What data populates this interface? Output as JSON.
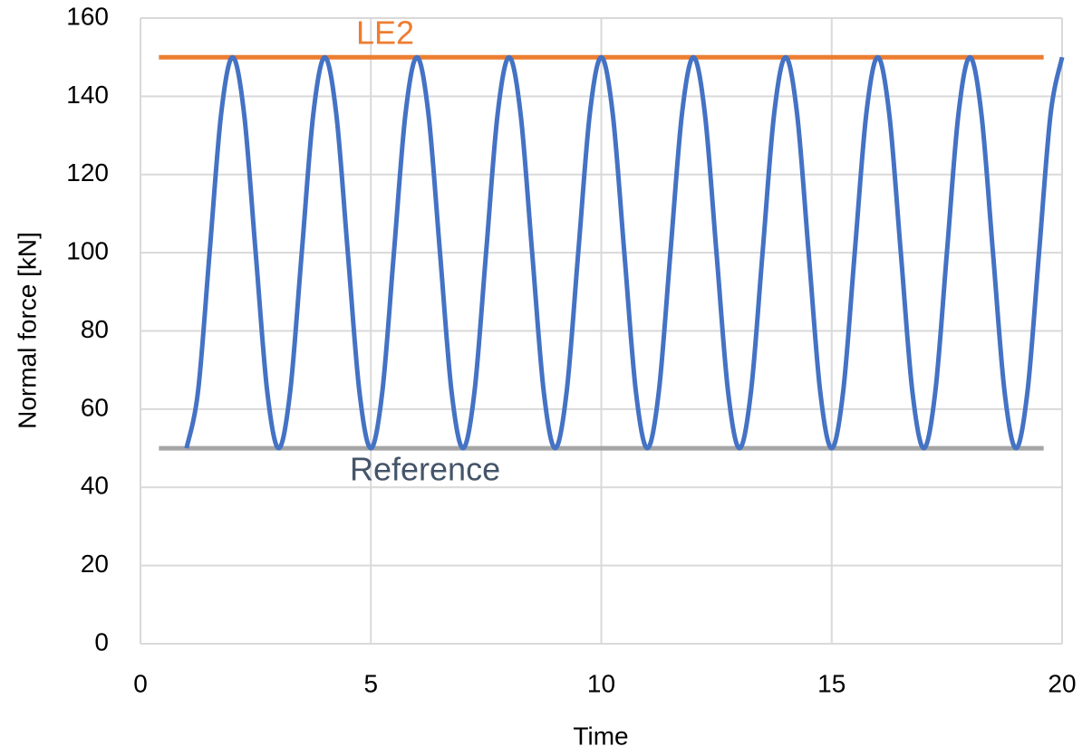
{
  "chart_data": {
    "type": "line",
    "x_label": "Time",
    "y_label": "Normal force [kN]",
    "xlim": [
      0,
      20
    ],
    "xticks": [
      0,
      5,
      10,
      15,
      20
    ],
    "ylim": [
      0,
      160
    ],
    "yticks": [
      0,
      20,
      40,
      60,
      80,
      100,
      120,
      140,
      160
    ],
    "grid": true,
    "series": [
      {
        "color": "#4472c4",
        "x": [
          1,
          1.25,
          1.5,
          1.75,
          2,
          2.25,
          2.5,
          2.75,
          3,
          3.25,
          3.5,
          3.75,
          4,
          4.25,
          4.5,
          4.75,
          5,
          5.25,
          5.5,
          5.75,
          6,
          6.25,
          6.5,
          6.75,
          7,
          7.25,
          7.5,
          7.75,
          8,
          8.25,
          8.5,
          8.75,
          9,
          9.25,
          9.5,
          9.75,
          10,
          10.25,
          10.5,
          10.75,
          11,
          11.25,
          11.5,
          11.75,
          12,
          12.25,
          12.5,
          12.75,
          13,
          13.25,
          13.5,
          13.75,
          14,
          14.25,
          14.5,
          14.75,
          15,
          15.25,
          15.5,
          15.75,
          16,
          16.25,
          16.5,
          16.75,
          17,
          17.25,
          17.5,
          17.75,
          18,
          18.25,
          18.5,
          18.75,
          19,
          19.25,
          19.5,
          19.75,
          20
        ],
        "values": [
          50,
          64.6,
          100,
          135.4,
          150,
          135.4,
          100,
          64.6,
          50,
          64.6,
          100,
          135.4,
          150,
          135.4,
          100,
          64.6,
          50,
          64.6,
          100,
          135.4,
          150,
          135.4,
          100,
          64.6,
          50,
          64.6,
          100,
          135.4,
          150,
          135.4,
          100,
          64.6,
          50,
          64.6,
          100,
          135.4,
          150,
          135.4,
          100,
          64.6,
          50,
          64.6,
          100,
          135.4,
          150,
          135.4,
          100,
          64.6,
          50,
          64.6,
          100,
          135.4,
          150,
          135.4,
          100,
          64.6,
          50,
          64.6,
          100,
          135.4,
          150,
          135.4,
          100,
          64.6,
          50,
          64.6,
          100,
          135.4,
          150,
          135.4,
          100,
          64.6,
          50,
          64.6,
          100,
          135.4,
          150
        ]
      },
      {
        "name": "LE2",
        "color": "#ed7d31",
        "label_color": "#ed7d31",
        "x": [
          0.4,
          19.6
        ],
        "values": [
          150,
          150
        ]
      },
      {
        "name": "Reference",
        "color": "#a5a5a5",
        "label_color": "#44546a",
        "x": [
          0.4,
          19.6
        ],
        "values": [
          50,
          50
        ]
      }
    ]
  }
}
